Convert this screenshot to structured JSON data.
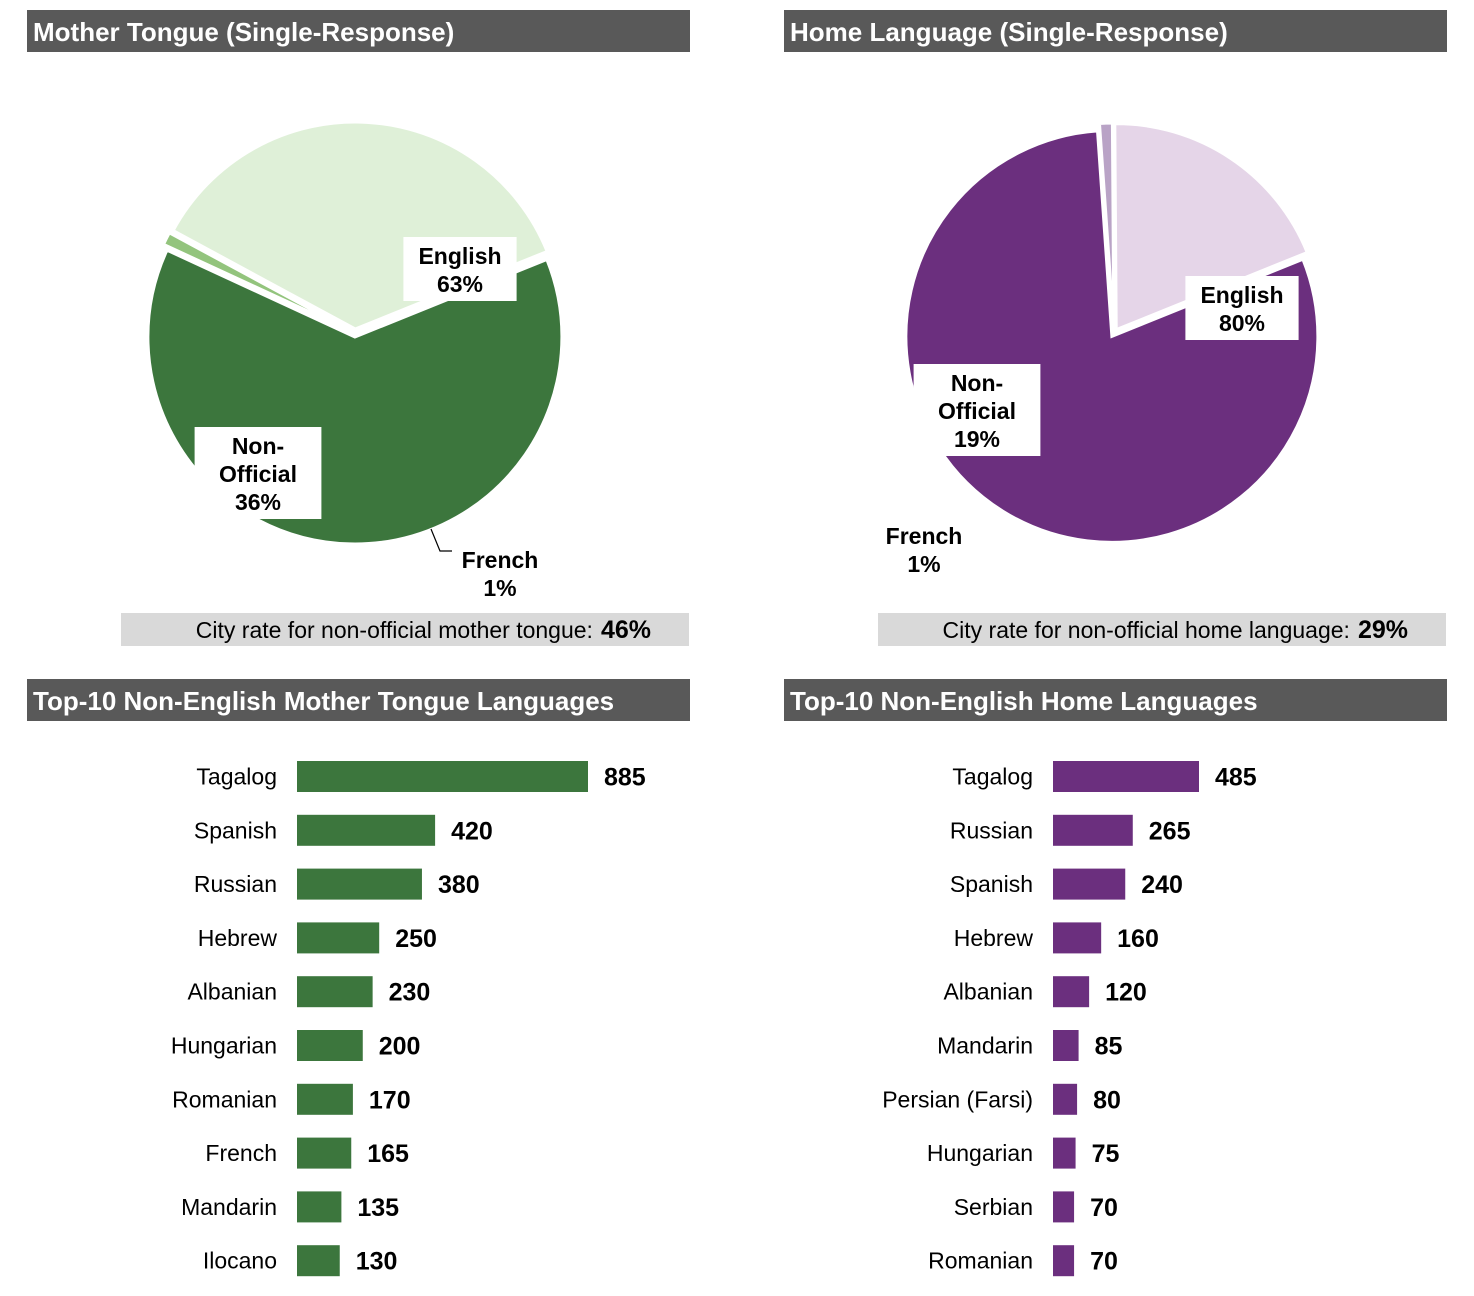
{
  "chart_data": [
    {
      "type": "pie",
      "title": "Mother Tongue (Single-Response)",
      "accent_color": "#3c763d",
      "slices": [
        {
          "label_lines": [
            "English",
            "63%"
          ],
          "value": 63,
          "color": "#3c763d"
        },
        {
          "label_lines": [
            "French",
            "1%"
          ],
          "value": 1,
          "color": "#93c47d"
        },
        {
          "label_lines": [
            "Non-",
            "Official",
            "36%"
          ],
          "value": 36,
          "color": "#dff0d8"
        }
      ],
      "rate_label": "City rate for non-official mother tongue:",
      "rate_value": "46%"
    },
    {
      "type": "pie",
      "title": "Home Language (Single-Response)",
      "accent_color": "#6b2f7e",
      "slices": [
        {
          "label_lines": [
            "English",
            "80%"
          ],
          "value": 80,
          "color": "#6b2f7e"
        },
        {
          "label_lines": [
            "French",
            "1%"
          ],
          "value": 1,
          "color": "#b9a3c6"
        },
        {
          "label_lines": [
            "Non-",
            "Official",
            "19%"
          ],
          "value": 19,
          "color": "#e5d5e8"
        }
      ],
      "rate_label": "City rate for non-official home language:",
      "rate_value": "29%"
    },
    {
      "type": "bar",
      "title": "Top-10 Non-English Mother Tongue Languages",
      "color": "#3c763d",
      "categories": [
        "Tagalog",
        "Spanish",
        "Russian",
        "Hebrew",
        "Albanian",
        "Hungarian",
        "Romanian",
        "French",
        "Mandarin",
        "Ilocano"
      ],
      "values": [
        885,
        420,
        380,
        250,
        230,
        200,
        170,
        165,
        135,
        130
      ],
      "xlim": [
        0,
        885
      ]
    },
    {
      "type": "bar",
      "title": "Top-10 Non-English Home Languages",
      "color": "#6b2f7e",
      "categories": [
        "Tagalog",
        "Russian",
        "Spanish",
        "Hebrew",
        "Albanian",
        "Mandarin",
        "Persian (Farsi)",
        "Hungarian",
        "Serbian",
        "Romanian"
      ],
      "values": [
        485,
        265,
        240,
        160,
        120,
        85,
        80,
        75,
        70,
        70
      ],
      "xlim": [
        0,
        485
      ]
    }
  ]
}
